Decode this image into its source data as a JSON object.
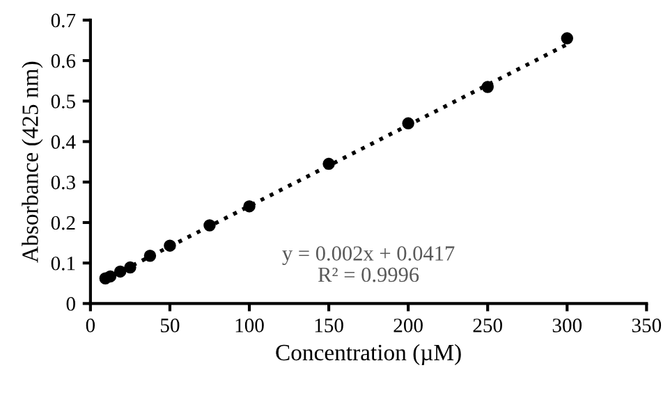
{
  "chart_data": {
    "type": "scatter",
    "xlabel": "Concentration (µM)",
    "ylabel": "Absorbance (425 nm)",
    "xlim": [
      0,
      350
    ],
    "xticks": [
      0,
      50,
      100,
      150,
      200,
      250,
      300,
      350
    ],
    "ylim": [
      0,
      0.7
    ],
    "yticks": [
      0,
      0.1,
      0.2,
      0.3,
      0.4,
      0.5,
      0.6,
      0.7
    ],
    "grid": false,
    "series": [
      {
        "marker": "circle",
        "color": "#000000",
        "x": [
          9.4,
          12.5,
          18.75,
          25,
          37.5,
          50,
          75,
          100,
          150,
          200,
          250,
          300
        ],
        "values": [
          0.062,
          0.067,
          0.079,
          0.089,
          0.118,
          0.143,
          0.193,
          0.24,
          0.345,
          0.445,
          0.535,
          0.655
        ]
      },
      {
        "type": "line",
        "color": "#000000",
        "line_style": "dotted",
        "x": [
          9.4,
          300
        ],
        "values": [
          0.06,
          0.64
        ]
      }
    ],
    "annotations": [
      "y = 0.002x + 0.0417",
      "R² = 0.9996"
    ]
  }
}
